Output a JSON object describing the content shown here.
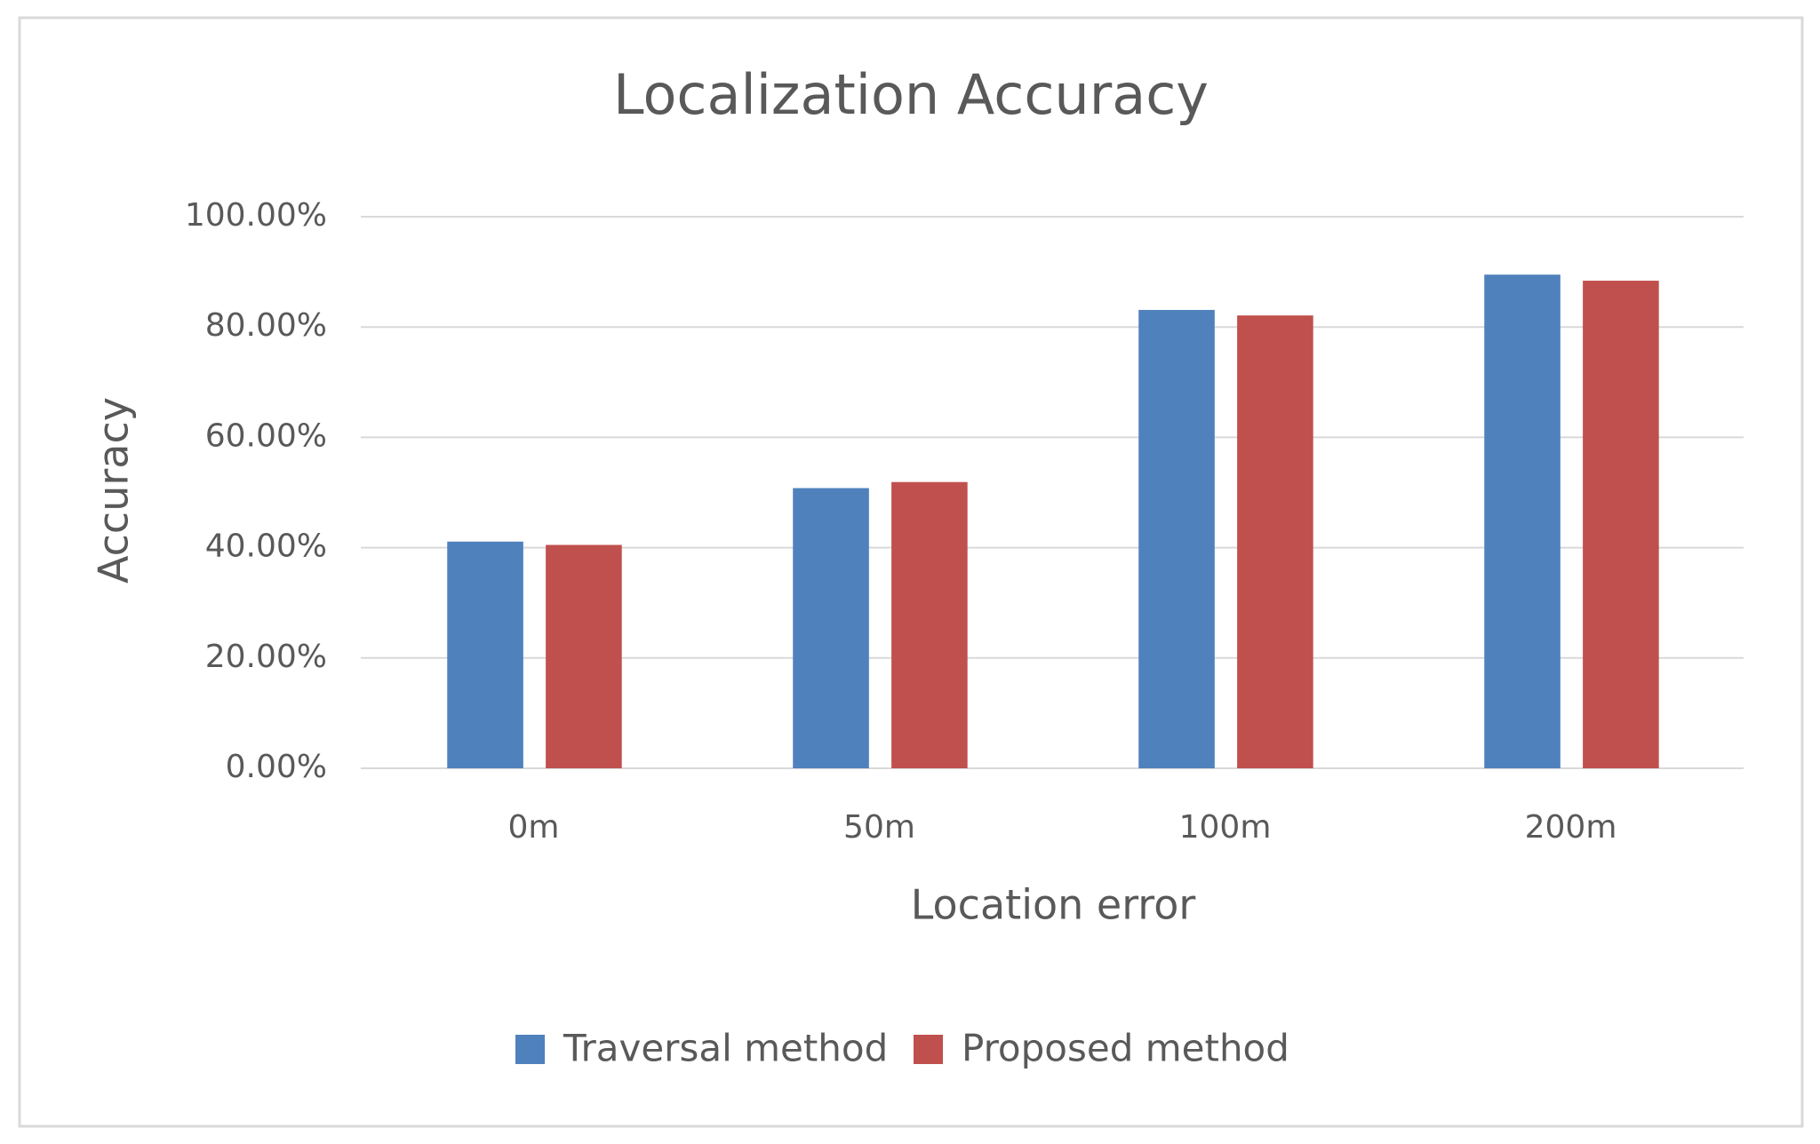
{
  "chart_data": {
    "type": "bar",
    "title": "Localization Accuracy",
    "x_label": "Location error",
    "y_label": "Accuracy",
    "categories": [
      "0m",
      "50m",
      "100m",
      "200m"
    ],
    "series": [
      {
        "name": "Traversal method",
        "color": "#4f81bd",
        "values": [
          41.1,
          50.8,
          83.1,
          89.5
        ]
      },
      {
        "name": "Proposed method",
        "color": "#c0504d",
        "values": [
          40.5,
          51.9,
          82.1,
          88.4
        ]
      }
    ],
    "ylim": [
      0,
      100
    ],
    "yticks": [
      {
        "value": 0,
        "label": "0.00%"
      },
      {
        "value": 20,
        "label": "20.00%"
      },
      {
        "value": 40,
        "label": "40.00%"
      },
      {
        "value": 60,
        "label": "60.00%"
      },
      {
        "value": 80,
        "label": "80.00%"
      },
      {
        "value": 100,
        "label": "100.00%"
      }
    ],
    "grid": true,
    "legend": "bottom"
  }
}
